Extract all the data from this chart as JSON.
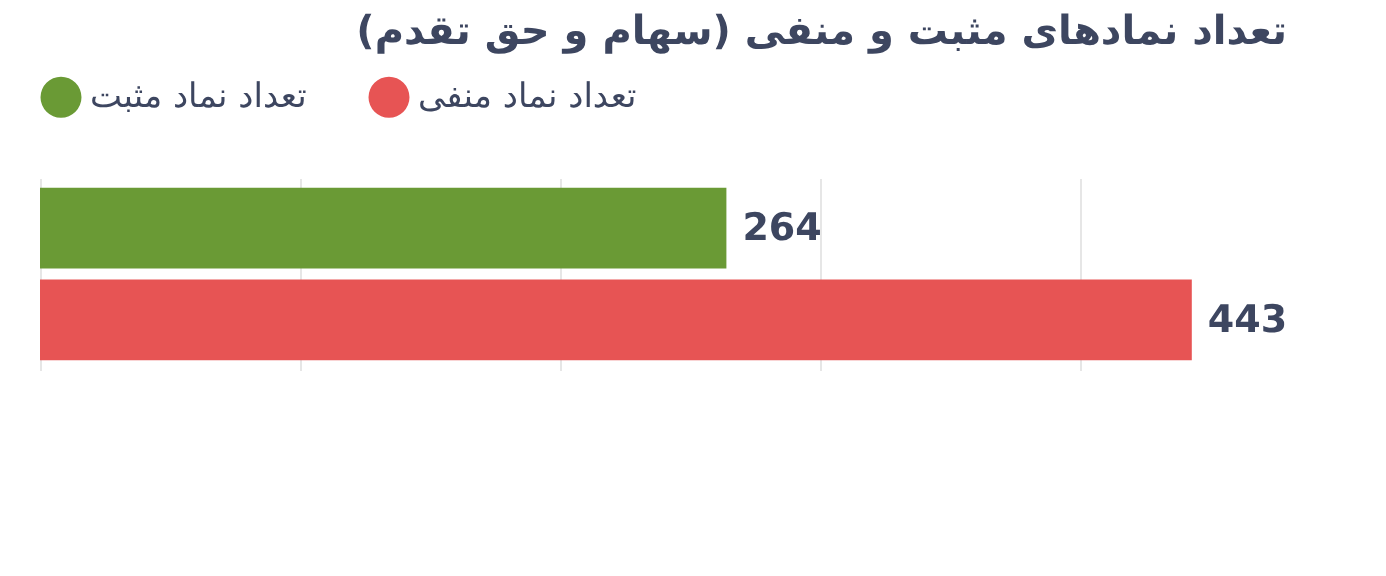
{
  "chart_data": {
    "type": "bar",
    "orientation": "horizontal",
    "title": "تعداد نمادهای مثبت و منفی (سهام و حق تقدم)",
    "categories": [
      null
    ],
    "series": [
      {
        "name": "تعداد نماد مثبت",
        "color": "#6a9a35",
        "values": [
          264
        ]
      },
      {
        "name": "تعداد نماد منفی",
        "color": "#e75454",
        "values": [
          443
        ]
      }
    ],
    "xticks": [
      {
        "value": 0,
        "label": null
      },
      {
        "value": 100,
        "label": null
      },
      {
        "value": 200,
        "label": null
      },
      {
        "value": 300,
        "label": null
      },
      {
        "value": 400,
        "label": null
      }
    ],
    "tick_labels": false,
    "grid": "x",
    "legend": "top",
    "data_labels": true
  }
}
